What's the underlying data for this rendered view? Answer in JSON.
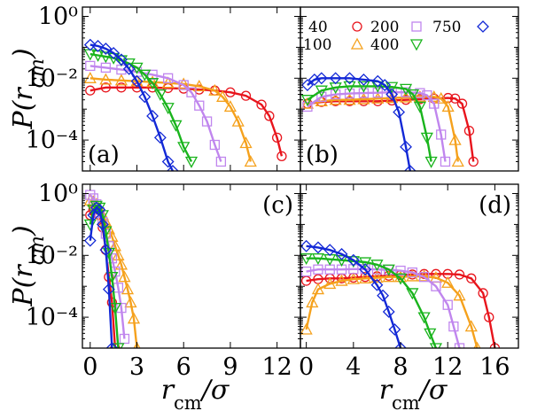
{
  "colors": {
    "40": "#e8141c",
    "100": "#f5a11c",
    "200": "#c086ee",
    "400": "#19b41c",
    "750": "#1228d6"
  },
  "markers": {
    "40": "circle",
    "100": "triangle-up",
    "200": "square",
    "400": "triangle-down",
    "750": "diamond"
  },
  "legend": {
    "position": "top",
    "panel": "b",
    "entries": [
      "40",
      "200",
      "750",
      "100",
      "400"
    ]
  },
  "figure": {
    "ylabel_text": "P(r",
    "ylabel_sub": "cm",
    "ylabel_close": ")",
    "xlabel_r": "r",
    "xlabel_sub": "cm",
    "xlabel_tail": "/σ"
  },
  "chart_data": [
    {
      "type": "line",
      "panel_label": "(a)",
      "y_scale": "log",
      "xlim": [
        -0.5,
        13.5
      ],
      "ylim": [
        1e-05,
        2
      ],
      "xticks": [
        0,
        3,
        6,
        9,
        12
      ],
      "yticks": [
        1,
        0.01,
        0.0001
      ],
      "ytick_labels": [
        "10⁰",
        "10⁻²",
        "10⁻⁴"
      ],
      "show_xticklabels": false,
      "show_yticklabels": true,
      "series": [
        {
          "name": "40",
          "x": [
            0,
            1,
            2,
            3,
            4,
            5,
            6,
            7,
            8,
            9,
            10,
            11,
            11.5,
            12,
            12.3
          ],
          "y": [
            0.004,
            0.005,
            0.005,
            0.005,
            0.005,
            0.0048,
            0.0046,
            0.0043,
            0.004,
            0.0035,
            0.0027,
            0.0014,
            0.0006,
            0.00012,
            3e-05
          ]
        },
        {
          "name": "100",
          "x": [
            0,
            1,
            2,
            3,
            4,
            5,
            6,
            7,
            8,
            8.5,
            9,
            9.5,
            10,
            10.3
          ],
          "y": [
            0.01,
            0.009,
            0.0085,
            0.008,
            0.0075,
            0.007,
            0.0065,
            0.0055,
            0.004,
            0.0025,
            0.0012,
            0.0004,
            8e-05,
            2e-05
          ]
        },
        {
          "name": "200",
          "x": [
            0,
            1,
            2,
            3,
            4,
            5,
            6,
            6.5,
            7,
            7.5,
            8,
            8.4
          ],
          "y": [
            0.025,
            0.022,
            0.019,
            0.016,
            0.013,
            0.01,
            0.006,
            0.0035,
            0.0013,
            0.0004,
            7e-05,
            2e-05
          ]
        },
        {
          "name": "400",
          "x": [
            0,
            0.5,
            1,
            1.5,
            2,
            2.5,
            3,
            3.5,
            4,
            4.5,
            5,
            5.5,
            6,
            6.5
          ],
          "y": [
            0.06,
            0.055,
            0.05,
            0.045,
            0.038,
            0.03,
            0.022,
            0.013,
            0.007,
            0.003,
            0.0011,
            0.0003,
            6e-05,
            2e-05
          ]
        },
        {
          "name": "750",
          "x": [
            0,
            0.5,
            1,
            1.5,
            2,
            2.5,
            3,
            3.5,
            4,
            4.5,
            5,
            5.3
          ],
          "y": [
            0.12,
            0.11,
            0.09,
            0.065,
            0.04,
            0.02,
            0.008,
            0.0025,
            0.0006,
            0.00012,
            2e-05,
            1e-05
          ]
        }
      ]
    },
    {
      "type": "line",
      "panel_label": "(b)",
      "y_scale": "log",
      "xlim": [
        -0.5,
        15
      ],
      "ylim": [
        1e-05,
        2
      ],
      "xticks": [],
      "yticks": [
        1,
        0.01,
        0.0001
      ],
      "ytick_labels": [],
      "show_xticklabels": false,
      "show_yticklabels": false,
      "series": [
        {
          "name": "40",
          "x": [
            0,
            1,
            2,
            3,
            4,
            5,
            6,
            7,
            8,
            9,
            10,
            10.5,
            11,
            11.5,
            11.8
          ],
          "y": [
            0.0015,
            0.0017,
            0.0018,
            0.0018,
            0.0018,
            0.0018,
            0.0019,
            0.002,
            0.0021,
            0.0022,
            0.0023,
            0.0022,
            0.0015,
            0.0002,
            2e-05
          ]
        },
        {
          "name": "100",
          "x": [
            0,
            1,
            2,
            3,
            4,
            5,
            6,
            7,
            8,
            9,
            9.5,
            10,
            10.5,
            10.7
          ],
          "y": [
            0.0015,
            0.0018,
            0.002,
            0.002,
            0.0021,
            0.0022,
            0.0023,
            0.0024,
            0.0025,
            0.0025,
            0.0022,
            0.0012,
            0.0001,
            2e-05
          ]
        },
        {
          "name": "200",
          "x": [
            0,
            1,
            2,
            3,
            4,
            5,
            6,
            7,
            8,
            8.5,
            9,
            9.5,
            9.8
          ],
          "y": [
            0.0012,
            0.0025,
            0.003,
            0.0032,
            0.0033,
            0.0034,
            0.0035,
            0.0035,
            0.0033,
            0.0028,
            0.0015,
            0.00015,
            2e-05
          ]
        },
        {
          "name": "400",
          "x": [
            0,
            1,
            2,
            3,
            4,
            5,
            6,
            7,
            7.5,
            8,
            8.5,
            8.8
          ],
          "y": [
            0.002,
            0.004,
            0.005,
            0.0055,
            0.0055,
            0.0055,
            0.0052,
            0.0045,
            0.003,
            0.0012,
            0.00012,
            2e-05
          ]
        },
        {
          "name": "750",
          "x": [
            0,
            0.5,
            1,
            2,
            3,
            4,
            5,
            5.5,
            6,
            6.5,
            7,
            7.3
          ],
          "y": [
            0.006,
            0.009,
            0.01,
            0.01,
            0.01,
            0.009,
            0.008,
            0.006,
            0.003,
            0.0008,
            6e-05,
            1e-05
          ]
        }
      ]
    },
    {
      "type": "line",
      "panel_label": "(c)",
      "y_scale": "log",
      "xlim": [
        -0.5,
        13.5
      ],
      "ylim": [
        1e-05,
        2
      ],
      "xticks": [
        0,
        3,
        6,
        9,
        12
      ],
      "yticks": [
        1,
        0.01,
        0.0001
      ],
      "ytick_labels": [
        "10⁰",
        "10⁻²",
        "10⁻⁴"
      ],
      "show_xticklabels": true,
      "xtick_labels": [
        "0",
        "3",
        "6",
        "9",
        "12"
      ],
      "show_yticklabels": true,
      "series": [
        {
          "name": "40",
          "x": [
            0,
            0.2,
            0.4,
            0.6,
            0.8,
            1,
            1.2,
            1.4,
            1.6
          ],
          "y": [
            0.2,
            0.3,
            0.3,
            0.2,
            0.08,
            0.015,
            0.002,
            0.0003,
            1e-05
          ]
        },
        {
          "name": "100",
          "x": [
            0,
            0.2,
            0.4,
            0.6,
            0.8,
            1,
            1.2,
            1.4,
            1.6,
            1.8,
            2,
            2.2,
            2.4,
            2.6,
            2.8,
            3
          ],
          "y": [
            0.6,
            0.55,
            0.45,
            0.3,
            0.2,
            0.12,
            0.07,
            0.04,
            0.02,
            0.01,
            0.005,
            0.002,
            0.0008,
            0.0003,
            9e-05,
            1e-05
          ]
        },
        {
          "name": "200",
          "x": [
            0,
            0.2,
            0.4,
            0.6,
            0.8,
            1,
            1.2,
            1.4,
            1.6,
            1.8,
            2,
            2.2
          ],
          "y": [
            0.9,
            0.7,
            0.45,
            0.25,
            0.12,
            0.05,
            0.02,
            0.008,
            0.003,
            0.0009,
            0.0002,
            2e-05
          ]
        },
        {
          "name": "400",
          "x": [
            0,
            0.2,
            0.4,
            0.6,
            0.8,
            1,
            1.2,
            1.4,
            1.6,
            1.8
          ],
          "y": [
            0.1,
            0.3,
            0.4,
            0.35,
            0.2,
            0.06,
            0.012,
            0.002,
            0.0002,
            1e-05
          ]
        },
        {
          "name": "750",
          "x": [
            0,
            0.2,
            0.4,
            0.6,
            0.8,
            1,
            1.2,
            1.4
          ],
          "y": [
            0.03,
            0.2,
            0.35,
            0.3,
            0.1,
            0.015,
            0.0008,
            1e-05
          ]
        }
      ]
    },
    {
      "type": "line",
      "panel_label": "(d)",
      "y_scale": "log",
      "xlim": [
        -0.5,
        18
      ],
      "ylim": [
        1e-05,
        2
      ],
      "xticks": [
        0,
        4,
        8,
        12,
        16
      ],
      "yticks": [
        1,
        0.01,
        0.0001
      ],
      "ytick_labels": [],
      "show_xticklabels": true,
      "xtick_labels": [
        "0",
        "4",
        "8",
        "12",
        "16"
      ],
      "show_yticklabels": false,
      "series": [
        {
          "name": "40",
          "x": [
            0,
            1,
            2,
            3,
            4,
            5,
            6,
            7,
            8,
            9,
            10,
            11,
            12,
            13,
            14,
            15,
            15.5,
            16
          ],
          "y": [
            0.0015,
            0.0017,
            0.0018,
            0.0018,
            0.0019,
            0.002,
            0.0021,
            0.0022,
            0.0023,
            0.0024,
            0.0025,
            0.0025,
            0.0025,
            0.0024,
            0.0018,
            0.0006,
            0.0001,
            1e-05
          ]
        },
        {
          "name": "100",
          "x": [
            0,
            0.5,
            1,
            2,
            3,
            4,
            5,
            6,
            7,
            8,
            9,
            10,
            11,
            12,
            13,
            14,
            14.5
          ],
          "y": [
            4e-05,
            0.0003,
            0.0008,
            0.0012,
            0.0015,
            0.0017,
            0.0018,
            0.0019,
            0.002,
            0.002,
            0.0021,
            0.0021,
            0.0019,
            0.0013,
            0.0005,
            5e-05,
            1e-05
          ]
        },
        {
          "name": "200",
          "x": [
            0,
            1,
            2,
            3,
            4,
            5,
            6,
            7,
            8,
            9,
            10,
            11,
            12,
            12.5,
            13
          ],
          "y": [
            0.003,
            0.0035,
            0.0035,
            0.0035,
            0.0036,
            0.0036,
            0.0035,
            0.0034,
            0.0032,
            0.0028,
            0.002,
            0.001,
            0.00025,
            5e-05,
            1e-05
          ]
        },
        {
          "name": "400",
          "x": [
            0,
            1,
            2,
            3,
            4,
            5,
            6,
            7,
            8,
            9,
            10,
            10.5,
            11
          ],
          "y": [
            0.008,
            0.008,
            0.0075,
            0.007,
            0.0065,
            0.006,
            0.005,
            0.0035,
            0.0018,
            0.0006,
            0.0001,
            3e-05,
            1e-05
          ]
        },
        {
          "name": "750",
          "x": [
            0,
            1,
            2,
            3,
            4,
            5,
            6,
            6.5,
            7,
            7.5,
            8
          ],
          "y": [
            0.02,
            0.018,
            0.015,
            0.011,
            0.007,
            0.0035,
            0.0011,
            0.0005,
            0.00015,
            4e-05,
            1e-05
          ]
        }
      ]
    }
  ]
}
